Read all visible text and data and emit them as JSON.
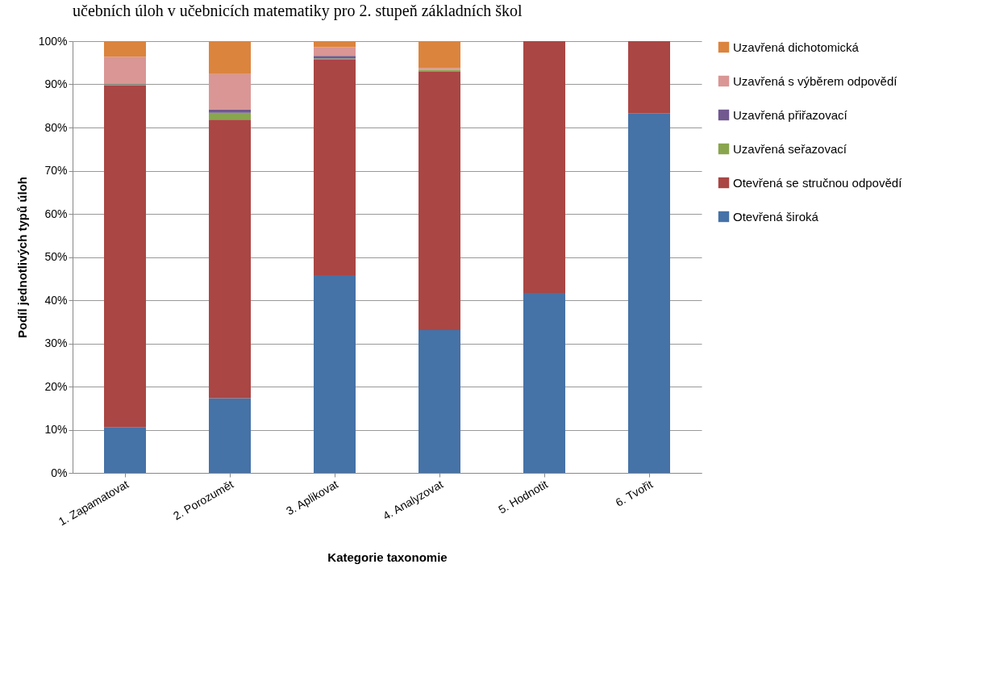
{
  "chart_data": {
    "type": "bar",
    "stacked": true,
    "title": "učebních úloh v učebnicích matematiky pro 2. stupeň základních škol",
    "xlabel": "Kategorie taxonomie",
    "ylabel": "Podíl jednotlivých typů úloh",
    "categories": [
      "1. Zapamatovat",
      "2. Porozumět",
      "3. Aplikovat",
      "4. Analyzovat",
      "5. Hodnotit",
      "6. Tvořit"
    ],
    "series": [
      {
        "name": "Otevřená široká",
        "color": "#4572a7",
        "values": [
          10.6,
          17.3,
          45.8,
          33.1,
          41.7,
          83.3
        ]
      },
      {
        "name": "Otevřená se stručnou odpovědí",
        "color": "#aa4643",
        "values": [
          79.2,
          64.5,
          49.9,
          59.8,
          58.3,
          16.7
        ]
      },
      {
        "name": "Uzavřená seřazovací",
        "color": "#89a54e",
        "values": [
          0.2,
          1.6,
          0.3,
          0.4,
          0,
          0
        ]
      },
      {
        "name": "Uzavřená přiřazovací",
        "color": "#71588f",
        "values": [
          0.2,
          0.8,
          0.6,
          0,
          0,
          0
        ]
      },
      {
        "name": "Uzavřená s výběrem odpovědí",
        "color": "#d99694",
        "values": [
          6.2,
          8.2,
          2.0,
          0.5,
          0,
          0
        ]
      },
      {
        "name": "Uzavřená dichotomická",
        "color": "#db843d",
        "values": [
          3.6,
          7.6,
          1.4,
          6.2,
          0,
          0
        ]
      }
    ],
    "ylim": [
      0,
      100
    ],
    "yticks": [
      {
        "value": 0,
        "label": "0%"
      },
      {
        "value": 10,
        "label": "10%"
      },
      {
        "value": 20,
        "label": "20%"
      },
      {
        "value": 30,
        "label": "30%"
      },
      {
        "value": 40,
        "label": "40%"
      },
      {
        "value": 50,
        "label": "50%"
      },
      {
        "value": 60,
        "label": "60%"
      },
      {
        "value": 70,
        "label": "70%"
      },
      {
        "value": 80,
        "label": "80%"
      },
      {
        "value": 90,
        "label": "90%"
      },
      {
        "value": 100,
        "label": "100%"
      }
    ],
    "grid": "y",
    "legend": "right"
  }
}
